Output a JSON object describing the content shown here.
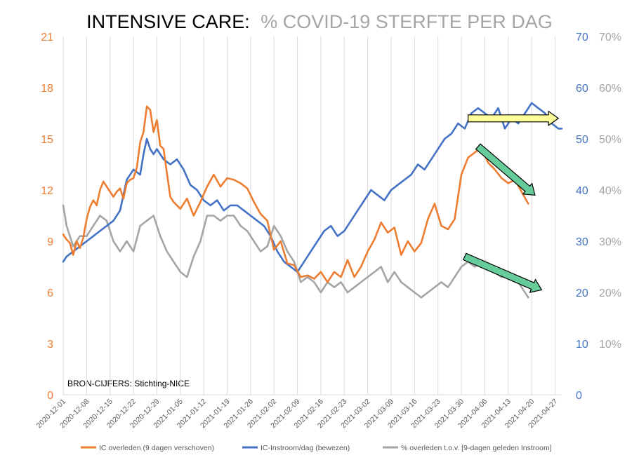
{
  "chart_data": {
    "type": "line",
    "title": {
      "main": "INTENSIVE CARE:",
      "sub": "% COVID-19 STERFTE PER DAG"
    },
    "source_note": "BRON-CIJFERS: Stichting-NICE",
    "x_start": "2020-12-01",
    "x_end": "2021-04-29",
    "x_tick_labels": [
      "2020-12-01",
      "2020-12-08",
      "2020-12-15",
      "2020-12-22",
      "2020-12-29",
      "2021-01-05",
      "2021-01-12",
      "2021-01-19",
      "2021-01-26",
      "2021-02-02",
      "2021-02-09",
      "2021-02-16",
      "2021-02-23",
      "2021-03-02",
      "2021-03-09",
      "2021-03-16",
      "2021-03-23",
      "2021-03-30",
      "2021-04-06",
      "2021-04-13",
      "2021-04-20",
      "2021-04-27"
    ],
    "axes": {
      "y_left": {
        "ylim": [
          0,
          21
        ],
        "ticks": [
          "0",
          "3",
          "6",
          "9",
          "12",
          "15",
          "18",
          "21"
        ],
        "color": "#ED7D31"
      },
      "y_right": {
        "ylim": [
          0,
          70
        ],
        "ticks": [
          "0",
          "10",
          "20",
          "30",
          "40",
          "50",
          "60",
          "70"
        ],
        "color": "#4472C4"
      },
      "y_pct": {
        "ylim": [
          0,
          70
        ],
        "ticks": [
          "10%",
          "20%",
          "30%",
          "40%",
          "50%",
          "60%",
          "70%"
        ],
        "tick_values": [
          10,
          20,
          30,
          40,
          50,
          60,
          70
        ],
        "color": "#A5A5A5"
      },
      "grid": "vertical"
    },
    "legend_position": "bottom",
    "series": [
      {
        "name": "IC overleden (9 dagen verschoven)",
        "axis": "left",
        "color": "#ED7D31",
        "x": [
          "2020-12-01",
          "2020-12-02",
          "2020-12-03",
          "2020-12-04",
          "2020-12-05",
          "2020-12-06",
          "2020-12-07",
          "2020-12-08",
          "2020-12-09",
          "2020-12-10",
          "2020-12-11",
          "2020-12-12",
          "2020-12-13",
          "2020-12-14",
          "2020-12-15",
          "2020-12-16",
          "2020-12-17",
          "2020-12-18",
          "2020-12-19",
          "2020-12-20",
          "2020-12-21",
          "2020-12-22",
          "2020-12-23",
          "2020-12-24",
          "2020-12-25",
          "2020-12-26",
          "2020-12-27",
          "2020-12-28",
          "2020-12-29",
          "2020-12-30",
          "2020-12-31",
          "2021-01-01",
          "2021-01-02",
          "2021-01-03",
          "2021-01-05",
          "2021-01-07",
          "2021-01-09",
          "2021-01-11",
          "2021-01-13",
          "2021-01-15",
          "2021-01-17",
          "2021-01-19",
          "2021-01-21",
          "2021-01-23",
          "2021-01-25",
          "2021-01-27",
          "2021-01-29",
          "2021-01-31",
          "2021-02-02",
          "2021-02-04",
          "2021-02-06",
          "2021-02-08",
          "2021-02-10",
          "2021-02-12",
          "2021-02-14",
          "2021-02-16",
          "2021-02-18",
          "2021-02-20",
          "2021-02-22",
          "2021-02-24",
          "2021-02-26",
          "2021-02-28",
          "2021-03-02",
          "2021-03-04",
          "2021-03-06",
          "2021-03-08",
          "2021-03-10",
          "2021-03-12",
          "2021-03-14",
          "2021-03-16",
          "2021-03-18",
          "2021-03-20",
          "2021-03-22",
          "2021-03-24",
          "2021-03-26",
          "2021-03-28",
          "2021-03-30",
          "2021-04-01",
          "2021-04-03",
          "2021-04-05",
          "2021-04-07",
          "2021-04-09",
          "2021-04-11",
          "2021-04-13",
          "2021-04-15",
          "2021-04-17",
          "2021-04-19"
        ],
        "values": [
          9.4,
          9.1,
          8.9,
          8.2,
          9.0,
          8.6,
          9.2,
          10.3,
          11.0,
          11.4,
          11.1,
          12.0,
          12.5,
          12.2,
          11.9,
          11.6,
          11.9,
          12.1,
          11.5,
          12.4,
          12.6,
          12.7,
          13.3,
          14.8,
          15.4,
          16.9,
          16.7,
          15.4,
          16.1,
          14.6,
          14.4,
          13.0,
          11.6,
          11.3,
          10.9,
          11.5,
          10.5,
          11.3,
          12.2,
          12.9,
          12.2,
          12.7,
          12.6,
          12.4,
          12.1,
          11.3,
          10.6,
          10.2,
          8.5,
          9.0,
          7.7,
          7.6,
          6.9,
          7.0,
          6.8,
          7.2,
          6.6,
          7.2,
          6.9,
          7.9,
          6.9,
          7.5,
          8.4,
          9.1,
          10.1,
          9.5,
          9.8,
          8.2,
          9.0,
          8.4,
          8.9,
          10.3,
          11.2,
          9.9,
          9.7,
          10.3,
          12.9,
          13.9,
          14.2,
          14.5,
          13.6,
          13.2,
          12.7,
          12.4,
          12.6,
          11.9,
          11.2
        ]
      },
      {
        "name": "IC-Instroom/dag (bewezen)",
        "axis": "right",
        "color": "#4472C4",
        "x": [
          "2020-12-01",
          "2020-12-02",
          "2020-12-04",
          "2020-12-06",
          "2020-12-08",
          "2020-12-10",
          "2020-12-12",
          "2020-12-14",
          "2020-12-16",
          "2020-12-18",
          "2020-12-20",
          "2020-12-22",
          "2020-12-24",
          "2020-12-25",
          "2020-12-26",
          "2020-12-27",
          "2020-12-28",
          "2020-12-29",
          "2020-12-30",
          "2020-12-31",
          "2021-01-02",
          "2021-01-04",
          "2021-01-06",
          "2021-01-08",
          "2021-01-10",
          "2021-01-12",
          "2021-01-14",
          "2021-01-16",
          "2021-01-18",
          "2021-01-20",
          "2021-01-22",
          "2021-01-24",
          "2021-01-26",
          "2021-01-28",
          "2021-01-30",
          "2021-02-01",
          "2021-02-03",
          "2021-02-05",
          "2021-02-07",
          "2021-02-09",
          "2021-02-11",
          "2021-02-13",
          "2021-02-15",
          "2021-02-17",
          "2021-02-19",
          "2021-02-21",
          "2021-02-23",
          "2021-02-25",
          "2021-02-27",
          "2021-03-01",
          "2021-03-03",
          "2021-03-05",
          "2021-03-07",
          "2021-03-09",
          "2021-03-11",
          "2021-03-13",
          "2021-03-15",
          "2021-03-17",
          "2021-03-19",
          "2021-03-21",
          "2021-03-23",
          "2021-03-25",
          "2021-03-27",
          "2021-03-29",
          "2021-03-31",
          "2021-04-02",
          "2021-04-04",
          "2021-04-06",
          "2021-04-08",
          "2021-04-10",
          "2021-04-12",
          "2021-04-14",
          "2021-04-16",
          "2021-04-18",
          "2021-04-20",
          "2021-04-22",
          "2021-04-24",
          "2021-04-26",
          "2021-04-28",
          "2021-04-29"
        ],
        "values": [
          26,
          27,
          28,
          29,
          30,
          31,
          32,
          33,
          34,
          36,
          42,
          44,
          43,
          47,
          50,
          48,
          47,
          48,
          47,
          46,
          45,
          46,
          44,
          41,
          40,
          38,
          37,
          38,
          36,
          37,
          37,
          36,
          35,
          34,
          33,
          31,
          28,
          26,
          25,
          24,
          26,
          28,
          30,
          32,
          33,
          31,
          32,
          34,
          36,
          38,
          40,
          39,
          38,
          40,
          41,
          42,
          43,
          45,
          44,
          46,
          48,
          50,
          51,
          53,
          52,
          55,
          56,
          55,
          54,
          56,
          52,
          54,
          53,
          55,
          57,
          56,
          55,
          53,
          52,
          52
        ]
      },
      {
        "name": "% overleden t.o.v. [9-dagen geleden Instroom]",
        "axis": "pct",
        "color": "#A5A5A5",
        "x": [
          "2020-12-01",
          "2020-12-02",
          "2020-12-04",
          "2020-12-06",
          "2020-12-08",
          "2020-12-10",
          "2020-12-12",
          "2020-12-14",
          "2020-12-16",
          "2020-12-18",
          "2020-12-20",
          "2020-12-22",
          "2020-12-24",
          "2020-12-26",
          "2020-12-28",
          "2020-12-30",
          "2021-01-01",
          "2021-01-03",
          "2021-01-05",
          "2021-01-07",
          "2021-01-09",
          "2021-01-11",
          "2021-01-13",
          "2021-01-15",
          "2021-01-17",
          "2021-01-19",
          "2021-01-21",
          "2021-01-23",
          "2021-01-25",
          "2021-01-27",
          "2021-01-29",
          "2021-01-31",
          "2021-02-02",
          "2021-02-04",
          "2021-02-06",
          "2021-02-08",
          "2021-02-10",
          "2021-02-12",
          "2021-02-14",
          "2021-02-16",
          "2021-02-18",
          "2021-02-20",
          "2021-02-22",
          "2021-02-24",
          "2021-02-26",
          "2021-02-28",
          "2021-03-02",
          "2021-03-04",
          "2021-03-06",
          "2021-03-08",
          "2021-03-10",
          "2021-03-12",
          "2021-03-14",
          "2021-03-16",
          "2021-03-18",
          "2021-03-20",
          "2021-03-22",
          "2021-03-24",
          "2021-03-26",
          "2021-03-28",
          "2021-03-30",
          "2021-04-01",
          "2021-04-03",
          "2021-04-05",
          "2021-04-07",
          "2021-04-09",
          "2021-04-11",
          "2021-04-13",
          "2021-04-15",
          "2021-04-17",
          "2021-04-19"
        ],
        "values": [
          37,
          33,
          29,
          31,
          31,
          33,
          35,
          34,
          30,
          28,
          30,
          28,
          33,
          34,
          35,
          31,
          28,
          26,
          24,
          23,
          27,
          30,
          35,
          35,
          34,
          35,
          35,
          33,
          32,
          30,
          28,
          29,
          33,
          31,
          28,
          26,
          22,
          23,
          22,
          20,
          22,
          21,
          22,
          20,
          21,
          22,
          23,
          24,
          25,
          22,
          24,
          22,
          21,
          20,
          19,
          20,
          21,
          22,
          21,
          23,
          25,
          26,
          25,
          26,
          25,
          24,
          23,
          24,
          23,
          21,
          19
        ]
      }
    ],
    "annotations": [
      {
        "type": "arrow",
        "axis": "right",
        "from": [
          "2021-04-01",
          54
        ],
        "to": [
          "2021-04-28",
          54
        ],
        "fill": "#FFFF99",
        "label": ""
      },
      {
        "type": "arrow",
        "axis": "right",
        "from": [
          "2021-04-04",
          48.5
        ],
        "to": [
          "2021-04-21",
          39
        ],
        "fill": "#66CC99",
        "label": ""
      },
      {
        "type": "arrow",
        "axis": "right",
        "from": [
          "2021-03-31",
          27
        ],
        "to": [
          "2021-04-23",
          20.5
        ],
        "fill": "#66CC99",
        "label": ""
      }
    ]
  }
}
